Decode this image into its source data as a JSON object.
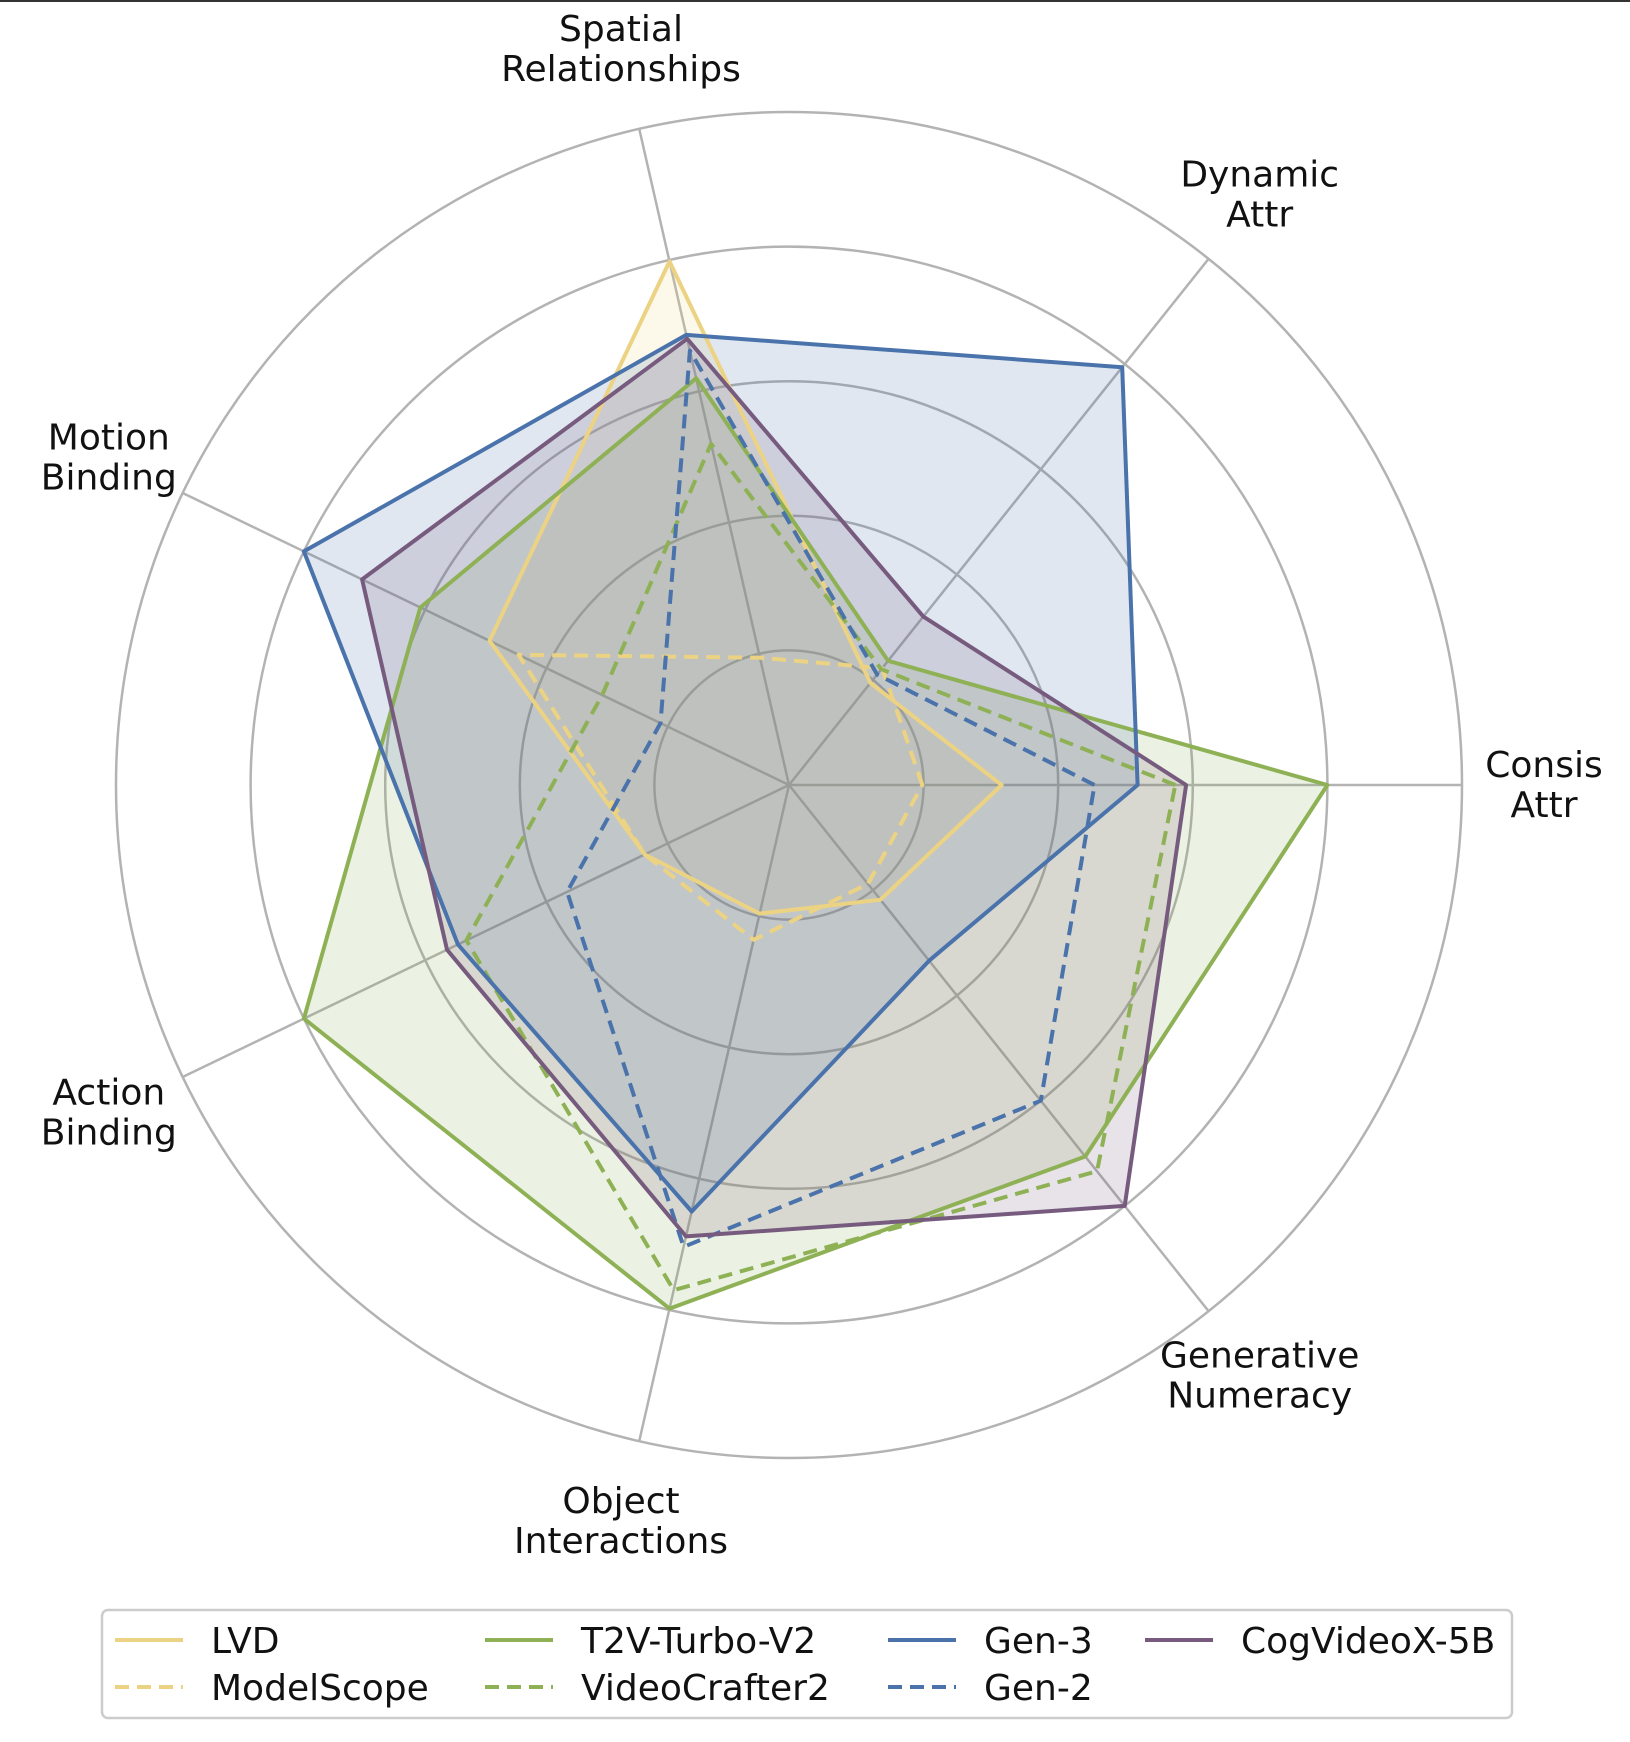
{
  "chart_data": {
    "type": "radar",
    "axes": [
      {
        "label": [
          "Consis",
          "Attr"
        ]
      },
      {
        "label": [
          "Dynamic",
          "Attr"
        ]
      },
      {
        "label": [
          "Spatial",
          "Relationships"
        ]
      },
      {
        "label": [
          "Motion",
          "Binding"
        ]
      },
      {
        "label": [
          "Action",
          "Binding"
        ]
      },
      {
        "label": [
          "Object",
          "Interactions"
        ]
      },
      {
        "label": [
          "Generative",
          "Numeracy"
        ]
      }
    ],
    "rlim": [
      0,
      5
    ],
    "rings": [
      1,
      2,
      3,
      4,
      5
    ],
    "grid": true,
    "legend_position": "bottom",
    "legend_columns": 4,
    "series": [
      {
        "name": "LVD",
        "color": "#ecd383",
        "style": "solid",
        "fill": true,
        "values": [
          1.58,
          0.97,
          3.99,
          2.47,
          1.19,
          0.98,
          1.09
        ]
      },
      {
        "name": "ModelScope",
        "color": "#ecd383",
        "style": "dashed",
        "fill": false,
        "values": [
          0.99,
          1.11,
          0.97,
          2.23,
          1.19,
          1.18,
          0.94
        ]
      },
      {
        "name": "T2V-Turbo-V2",
        "color": "#8fb156",
        "style": "solid",
        "fill": true,
        "values": [
          4.0,
          1.18,
          3.1,
          3.04,
          4.0,
          3.99,
          3.53
        ]
      },
      {
        "name": "VideoCrafter2",
        "color": "#8fb156",
        "style": "dashed",
        "fill": false,
        "values": [
          2.87,
          1.1,
          2.6,
          1.54,
          2.66,
          3.85,
          3.67
        ]
      },
      {
        "name": "Gen-3",
        "color": "#4a73ab",
        "style": "solid",
        "fill": true,
        "values": [
          2.59,
          3.97,
          3.43,
          4.0,
          2.73,
          3.25,
          1.67
        ]
      },
      {
        "name": "Gen-2",
        "color": "#4a73ab",
        "style": "dashed",
        "fill": false,
        "values": [
          2.27,
          1.05,
          3.31,
          1.06,
          1.83,
          3.52,
          3.0
        ]
      },
      {
        "name": "CogVideoX-5B",
        "color": "#775b7f",
        "style": "solid",
        "fill": true,
        "values": [
          2.95,
          1.6,
          3.4,
          3.52,
          2.82,
          3.44,
          4.0
        ]
      }
    ]
  }
}
